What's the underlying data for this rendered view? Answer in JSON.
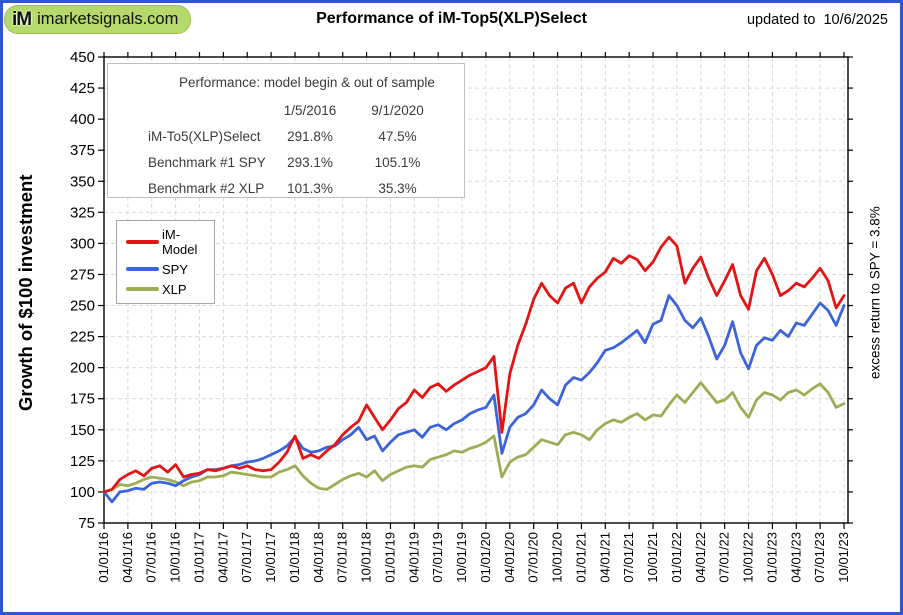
{
  "header": {
    "logo_im": "iM",
    "logo_site": "imarketsignals.com",
    "title": "Performance of iM-Top5(XLP)Select",
    "updated_label": "updated to",
    "updated_date": "10/6/2025"
  },
  "y_axis_title": "Growth of $100 investment",
  "right_axis_note": "excess return to SPY = 3.8%",
  "stats_box": {
    "title": "Performance:  model begin &  out of sample",
    "col1": "1/5/2016",
    "col2": "9/1/2020",
    "rows": [
      {
        "label": "iM-To5(XLP)Select",
        "v1": "291.8%",
        "v2": "47.5%"
      },
      {
        "label": "Benchmark #1 SPY",
        "v1": "293.1%",
        "v2": "105.1%"
      },
      {
        "label": "Benchmark #2 XLP",
        "v1": "101.3%",
        "v2": "35.3%"
      }
    ]
  },
  "colors": {
    "frame_border": "#2f56d0",
    "logo_green": "#b5d96b",
    "grid": "#d9d9d9",
    "axis": "#000000"
  },
  "chart_data": {
    "type": "line",
    "title": "Performance of iM-Top5(XLP)Select",
    "ylabel": "Growth of $100 investment",
    "ylim": [
      75,
      450
    ],
    "y_ticks": [
      450,
      425,
      400,
      375,
      350,
      325,
      300,
      275,
      250,
      225,
      200,
      175,
      150,
      125,
      100,
      75
    ],
    "x_unit": "months since 2016-01-01, quarterly ticks",
    "x_max": 93.5,
    "x_tick_step_months": 3,
    "x_tick_labels": [
      "01/01/16",
      "04/01/16",
      "07/01/16",
      "10/01/16",
      "01/01/17",
      "04/01/17",
      "07/01/17",
      "10/01/17",
      "01/01/18",
      "04/01/18",
      "07/01/18",
      "10/01/18",
      "01/01/19",
      "04/01/19",
      "07/01/19",
      "10/01/19",
      "01/01/20",
      "04/01/20",
      "07/01/20",
      "10/01/20",
      "01/01/21",
      "04/01/21",
      "07/01/21",
      "10/01/21",
      "01/01/22",
      "04/01/22",
      "07/01/22",
      "10/01/22",
      "01/01/23",
      "04/01/23",
      "07/01/23",
      "10/01/23"
    ],
    "grid": true,
    "legend_position": "upper-left inside",
    "series": [
      {
        "name": "iM-Model",
        "color": "#e41414",
        "values": [
          100,
          102,
          110,
          114,
          117,
          113,
          119,
          121,
          116,
          122,
          112,
          114,
          115,
          118,
          117,
          119,
          121,
          119,
          121,
          118,
          117,
          118,
          124,
          132,
          145,
          127,
          130,
          127,
          133,
          138,
          146,
          152,
          157,
          170,
          160,
          150,
          158,
          167,
          172,
          182,
          176,
          184,
          187,
          181,
          186,
          190,
          194,
          197,
          200,
          209,
          148,
          195,
          218,
          235,
          255,
          268,
          258,
          252,
          264,
          268,
          252,
          265,
          272,
          277,
          288,
          284,
          290,
          287,
          278,
          285,
          297,
          305,
          298,
          268,
          280,
          289,
          272,
          258,
          270,
          283,
          258,
          247,
          278,
          288,
          275,
          258,
          262,
          268,
          265,
          272,
          280,
          270,
          248,
          258
        ]
      },
      {
        "name": "SPY",
        "color": "#3c64da",
        "values": [
          100,
          92,
          100,
          101,
          103,
          102,
          107,
          108,
          107,
          105,
          109,
          112,
          114,
          118,
          118,
          119,
          121,
          122,
          124,
          125,
          127,
          130,
          133,
          137,
          144,
          135,
          132,
          133,
          136,
          137,
          142,
          146,
          152,
          142,
          145,
          133,
          140,
          146,
          148,
          150,
          144,
          152,
          154,
          150,
          155,
          158,
          163,
          166,
          168,
          178,
          131,
          152,
          160,
          163,
          170,
          182,
          175,
          170,
          186,
          192,
          190,
          196,
          204,
          214,
          216,
          220,
          225,
          230,
          220,
          235,
          238,
          258,
          250,
          238,
          232,
          240,
          225,
          207,
          218,
          237,
          212,
          199,
          218,
          224,
          222,
          230,
          225,
          236,
          234,
          243,
          252,
          246,
          234,
          250
        ]
      },
      {
        "name": "XLP",
        "color": "#9dad55",
        "values": [
          100,
          102,
          106,
          105,
          107,
          110,
          112,
          111,
          110,
          108,
          105,
          108,
          109,
          112,
          112,
          113,
          116,
          115,
          114,
          113,
          112,
          112,
          116,
          118,
          121,
          113,
          107,
          103,
          102,
          106,
          110,
          113,
          115,
          112,
          117,
          109,
          114,
          117,
          120,
          121,
          120,
          126,
          128,
          130,
          133,
          132,
          135,
          137,
          140,
          145,
          112,
          124,
          128,
          130,
          136,
          142,
          140,
          138,
          146,
          148,
          146,
          142,
          150,
          155,
          158,
          156,
          160,
          163,
          158,
          162,
          161,
          170,
          178,
          172,
          180,
          188,
          180,
          172,
          174,
          180,
          168,
          160,
          174,
          180,
          178,
          174,
          180,
          182,
          178,
          183,
          187,
          180,
          168,
          171
        ]
      }
    ]
  }
}
